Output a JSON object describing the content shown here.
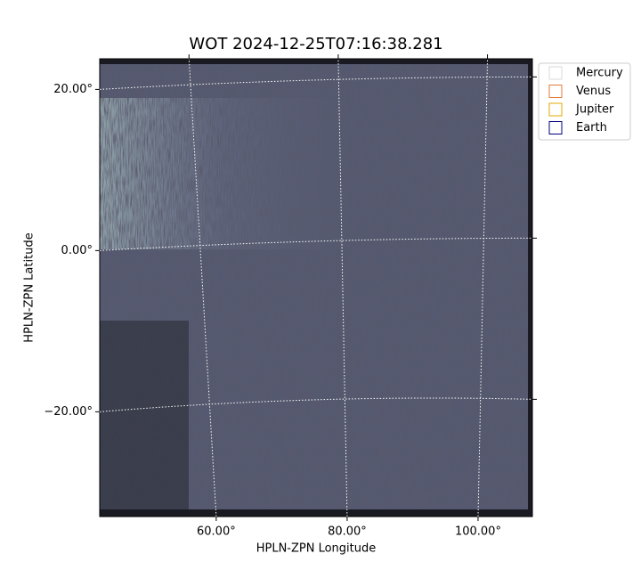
{
  "chart_data": {
    "type": "image",
    "title": "WOT 2024-12-25T07:16:38.281",
    "x_label": "HPLN-ZPN Longitude",
    "y_label": "HPLN-ZPN Latitude",
    "xlim": [
      42.2,
      108.3
    ],
    "ylim": [
      -33,
      23.8
    ],
    "xticks": [
      {
        "value": 60,
        "label": "60.00°"
      },
      {
        "value": 80,
        "label": "80.00°"
      },
      {
        "value": 100,
        "label": "100.00°"
      }
    ],
    "yticks": [
      {
        "value": -20,
        "label": "−20.00°"
      },
      {
        "value": 0,
        "label": "0.00°"
      },
      {
        "value": 20,
        "label": "20.00°"
      }
    ],
    "grid": true,
    "legend_position": "outside-right",
    "series": [
      {
        "name": "Mercury",
        "color": "#d8d8d8"
      },
      {
        "name": "Venus",
        "color": "#e07b39"
      },
      {
        "name": "Jupiter",
        "color": "#e0a800"
      },
      {
        "name": "Earth",
        "color": "#000080"
      }
    ]
  }
}
